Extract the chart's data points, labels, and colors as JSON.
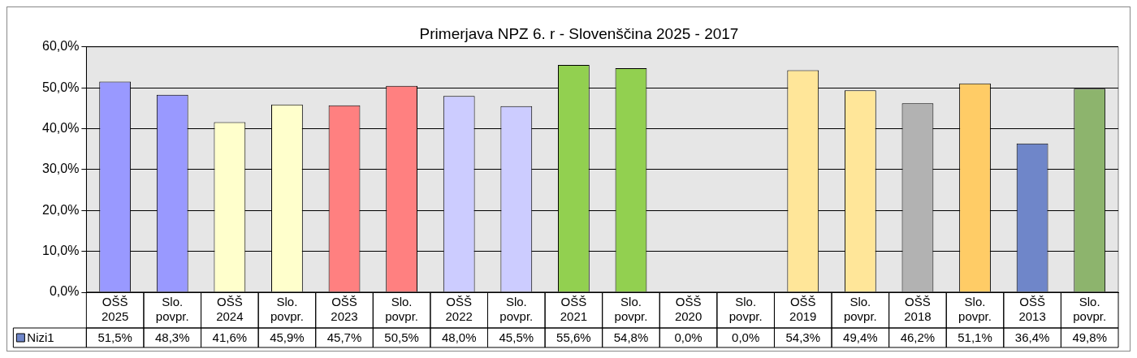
{
  "chart_data": {
    "type": "bar",
    "title": "Primerjava NPZ 6. r - Slovenščina 2025 - 2017",
    "categories": [
      "OŠŠ 2025",
      "Slo. povpr.",
      "OŠŠ 2024",
      "Slo. povpr.",
      "OŠŠ 2023",
      "Slo. povpr.",
      "OŠŠ 2022",
      "Slo. povpr.",
      "OŠŠ 2021",
      "Slo. povpr.",
      "OŠŠ 2020",
      "Slo. povpr.",
      "OŠŠ 2019",
      "Slo. povpr.",
      "OŠŠ 2018",
      "Slo. povpr.",
      "OŠŠ 2013",
      "Slo. povpr."
    ],
    "series": [
      {
        "name": "Nizi1",
        "color": "#6f86c9",
        "colors": [
          "#9999ff",
          "#9999ff",
          "#ffffcc",
          "#ffffcc",
          "#ff8080",
          "#ff8080",
          "#ccccff",
          "#ccccff",
          "#92d050",
          "#92d050",
          "#000000",
          "#000000",
          "#ffe699",
          "#ffe699",
          "#b2b2b2",
          "#ffcc66",
          "#6f86c9",
          "#8db46d"
        ],
        "values": [
          51.5,
          48.3,
          41.6,
          45.9,
          45.7,
          50.5,
          48.0,
          45.5,
          55.6,
          54.8,
          0.0,
          0.0,
          54.3,
          49.4,
          46.2,
          51.1,
          36.4,
          49.8
        ],
        "value_labels": [
          "51,5%",
          "48,3%",
          "41,6%",
          "45,9%",
          "45,7%",
          "50,5%",
          "48,0%",
          "45,5%",
          "55,6%",
          "54,8%",
          "0,0%",
          "0,0%",
          "54,3%",
          "49,4%",
          "46,2%",
          "51,1%",
          "36,4%",
          "49,8%"
        ]
      }
    ],
    "ylim": [
      0,
      60
    ],
    "yticks": [
      {
        "value": 0,
        "label": "0,0%"
      },
      {
        "value": 10,
        "label": "10,0%"
      },
      {
        "value": 20,
        "label": "20,0%"
      },
      {
        "value": 30,
        "label": "30,0%"
      },
      {
        "value": 40,
        "label": "40,0%"
      },
      {
        "value": 50,
        "label": "50,0%"
      },
      {
        "value": 60,
        "label": "60,0%"
      }
    ],
    "grid": "y",
    "legend": "bottom"
  }
}
